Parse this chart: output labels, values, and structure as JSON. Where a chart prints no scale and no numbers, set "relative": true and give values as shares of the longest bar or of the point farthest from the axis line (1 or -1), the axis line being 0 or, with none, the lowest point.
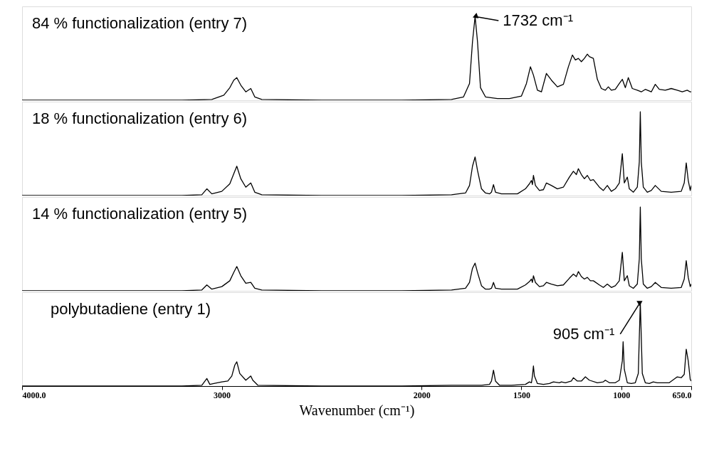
{
  "chart_data": [
    {
      "type": "line",
      "relative": true,
      "xlim": [
        4000,
        650
      ],
      "tick_labels": false,
      "legend": false,
      "grid": false,
      "annotations": [
        {
          "text": "1732 cm⁻¹",
          "x": 1732,
          "y": 1
        }
      ],
      "series": [
        {
          "name": "84 % functionalization (entry 7)",
          "color": "#000000",
          "x": [
            4000,
            3600,
            3200,
            3050,
            2990,
            2960,
            2940,
            2925,
            2905,
            2880,
            2855,
            2835,
            2800,
            2500,
            2100,
            1850,
            1790,
            1760,
            1745,
            1732,
            1720,
            1705,
            1680,
            1620,
            1560,
            1500,
            1475,
            1455,
            1440,
            1420,
            1400,
            1375,
            1350,
            1320,
            1290,
            1265,
            1245,
            1230,
            1215,
            1200,
            1185,
            1170,
            1160,
            1140,
            1120,
            1100,
            1080,
            1065,
            1050,
            1030,
            1010,
            995,
            980,
            965,
            945,
            920,
            900,
            880,
            850,
            830,
            810,
            780,
            750,
            720,
            695,
            670,
            655,
            650
          ],
          "values": [
            0,
            0,
            0,
            0.01,
            0.06,
            0.15,
            0.24,
            0.27,
            0.18,
            0.1,
            0.14,
            0.04,
            0.01,
            0,
            0,
            0.01,
            0.04,
            0.2,
            0.7,
            1,
            0.7,
            0.15,
            0.04,
            0.02,
            0.02,
            0.05,
            0.2,
            0.4,
            0.3,
            0.12,
            0.1,
            0.32,
            0.24,
            0.16,
            0.19,
            0.4,
            0.54,
            0.48,
            0.5,
            0.46,
            0.5,
            0.55,
            0.52,
            0.5,
            0.25,
            0.14,
            0.12,
            0.16,
            0.12,
            0.13,
            0.2,
            0.25,
            0.15,
            0.27,
            0.14,
            0.12,
            0.1,
            0.13,
            0.1,
            0.19,
            0.13,
            0.12,
            0.14,
            0.12,
            0.1,
            0.12,
            0.1,
            0.1
          ]
        }
      ]
    },
    {
      "type": "line",
      "relative": true,
      "xlim": [
        4000,
        650
      ],
      "tick_labels": false,
      "legend": false,
      "grid": false,
      "series": [
        {
          "name": "18 % functionalization (entry 6)",
          "color": "#000000",
          "x": [
            4000,
            3600,
            3200,
            3100,
            3075,
            3050,
            3000,
            2960,
            2940,
            2925,
            2905,
            2880,
            2855,
            2835,
            2800,
            2500,
            2100,
            1850,
            1780,
            1760,
            1745,
            1732,
            1720,
            1700,
            1680,
            1660,
            1650,
            1640,
            1630,
            1600,
            1520,
            1480,
            1460,
            1450,
            1445,
            1440,
            1430,
            1410,
            1390,
            1375,
            1350,
            1320,
            1290,
            1260,
            1240,
            1225,
            1215,
            1200,
            1185,
            1170,
            1155,
            1140,
            1110,
            1090,
            1070,
            1050,
            1030,
            1010,
            995,
            985,
            970,
            960,
            940,
            920,
            910,
            905,
            900,
            890,
            870,
            850,
            830,
            800,
            750,
            700,
            685,
            675,
            665,
            655,
            650
          ],
          "values": [
            0,
            0,
            0,
            0.01,
            0.08,
            0.02,
            0.05,
            0.14,
            0.26,
            0.35,
            0.2,
            0.1,
            0.15,
            0.04,
            0.01,
            0,
            0,
            0.01,
            0.03,
            0.12,
            0.35,
            0.46,
            0.3,
            0.08,
            0.03,
            0.02,
            0.04,
            0.13,
            0.04,
            0.02,
            0.02,
            0.08,
            0.14,
            0.18,
            0.13,
            0.24,
            0.12,
            0.06,
            0.07,
            0.15,
            0.12,
            0.08,
            0.1,
            0.22,
            0.29,
            0.25,
            0.32,
            0.25,
            0.2,
            0.24,
            0.18,
            0.19,
            0.1,
            0.06,
            0.12,
            0.05,
            0.08,
            0.15,
            0.5,
            0.15,
            0.22,
            0.08,
            0.04,
            0.1,
            0.4,
            1,
            0.4,
            0.1,
            0.04,
            0.06,
            0.12,
            0.05,
            0.04,
            0.05,
            0.15,
            0.39,
            0.18,
            0.06,
            0.12
          ]
        }
      ]
    },
    {
      "type": "line",
      "relative": true,
      "xlim": [
        4000,
        650
      ],
      "tick_labels": false,
      "legend": false,
      "grid": false,
      "series": [
        {
          "name": "14 % functionalization (entry 5)",
          "color": "#000000",
          "x": [
            4000,
            3600,
            3200,
            3100,
            3075,
            3050,
            3000,
            2960,
            2940,
            2925,
            2905,
            2880,
            2855,
            2835,
            2800,
            2500,
            2100,
            1850,
            1780,
            1760,
            1745,
            1732,
            1720,
            1700,
            1680,
            1660,
            1650,
            1640,
            1630,
            1600,
            1520,
            1480,
            1460,
            1450,
            1445,
            1440,
            1430,
            1410,
            1390,
            1375,
            1350,
            1320,
            1290,
            1260,
            1240,
            1225,
            1215,
            1200,
            1185,
            1170,
            1155,
            1140,
            1110,
            1090,
            1070,
            1050,
            1030,
            1010,
            995,
            985,
            970,
            960,
            940,
            920,
            910,
            905,
            900,
            890,
            870,
            850,
            830,
            800,
            750,
            700,
            685,
            675,
            665,
            655,
            650
          ],
          "values": [
            0,
            0,
            0,
            0.01,
            0.07,
            0.02,
            0.05,
            0.12,
            0.22,
            0.29,
            0.18,
            0.09,
            0.1,
            0.03,
            0.01,
            0,
            0,
            0.01,
            0.03,
            0.1,
            0.27,
            0.33,
            0.22,
            0.06,
            0.02,
            0.02,
            0.03,
            0.1,
            0.03,
            0.02,
            0.02,
            0.07,
            0.11,
            0.14,
            0.1,
            0.18,
            0.1,
            0.05,
            0.06,
            0.1,
            0.08,
            0.06,
            0.07,
            0.15,
            0.2,
            0.17,
            0.23,
            0.17,
            0.14,
            0.16,
            0.12,
            0.12,
            0.07,
            0.04,
            0.08,
            0.04,
            0.06,
            0.12,
            0.46,
            0.12,
            0.18,
            0.06,
            0.03,
            0.08,
            0.38,
            1,
            0.38,
            0.08,
            0.03,
            0.05,
            0.1,
            0.04,
            0.03,
            0.04,
            0.14,
            0.36,
            0.16,
            0.05,
            0.08
          ]
        }
      ]
    },
    {
      "type": "line",
      "relative": true,
      "xlim": [
        4000,
        650
      ],
      "xticks": [
        {
          "value": 4000,
          "label": "4000.0"
        },
        3000,
        2000,
        1500,
        1000,
        {
          "value": 650,
          "label": "650.0"
        }
      ],
      "tick_labels": "x",
      "legend": false,
      "grid": false,
      "xlabel": "Wavenumber (cm⁻¹)",
      "annotations": [
        {
          "text": "905 cm⁻¹",
          "x": 905,
          "y": 1
        }
      ],
      "series": [
        {
          "name": "polybutadiene (entry 1)",
          "color": "#000000",
          "x": [
            4000,
            3600,
            3200,
            3100,
            3075,
            3060,
            3040,
            3000,
            2970,
            2950,
            2935,
            2925,
            2910,
            2880,
            2865,
            2855,
            2845,
            2820,
            2500,
            2100,
            1850,
            1700,
            1660,
            1650,
            1640,
            1630,
            1610,
            1550,
            1480,
            1460,
            1450,
            1445,
            1440,
            1435,
            1420,
            1390,
            1360,
            1340,
            1310,
            1300,
            1280,
            1250,
            1240,
            1220,
            1200,
            1180,
            1160,
            1120,
            1090,
            1080,
            1060,
            1030,
            1010,
            995,
            991,
            985,
            970,
            950,
            930,
            915,
            905,
            895,
            880,
            860,
            840,
            820,
            790,
            760,
            720,
            700,
            685,
            675,
            665,
            655,
            650
          ],
          "values": [
            0,
            0,
            0,
            0.01,
            0.09,
            0.02,
            0.03,
            0.05,
            0.06,
            0.12,
            0.25,
            0.29,
            0.15,
            0.07,
            0.1,
            0.12,
            0.07,
            0.01,
            0,
            0,
            0.01,
            0.01,
            0.02,
            0.06,
            0.19,
            0.06,
            0.01,
            0.01,
            0.02,
            0.05,
            0.04,
            0.12,
            0.24,
            0.12,
            0.03,
            0.02,
            0.03,
            0.05,
            0.04,
            0.05,
            0.04,
            0.06,
            0.1,
            0.06,
            0.06,
            0.11,
            0.07,
            0.04,
            0.05,
            0.07,
            0.04,
            0.04,
            0.07,
            0.3,
            0.53,
            0.2,
            0.04,
            0.03,
            0.04,
            0.15,
            1,
            0.15,
            0.04,
            0.03,
            0.05,
            0.04,
            0.04,
            0.04,
            0.11,
            0.1,
            0.14,
            0.44,
            0.3,
            0.08,
            0.06
          ]
        }
      ]
    }
  ]
}
